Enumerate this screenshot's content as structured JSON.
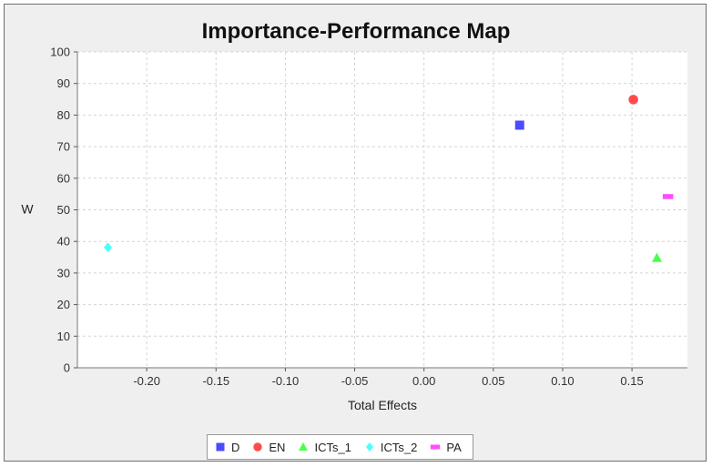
{
  "chart_data": {
    "type": "scatter",
    "title": "Importance-Performance Map",
    "xlabel": "Total Effects",
    "ylabel": "W",
    "xlim": [
      -0.25,
      0.19
    ],
    "ylim": [
      0,
      100
    ],
    "x_ticks": [
      -0.2,
      -0.15,
      -0.1,
      -0.05,
      0.0,
      0.05,
      0.1,
      0.15
    ],
    "x_tick_labels": [
      "-0.20",
      "-0.15",
      "-0.10",
      "-0.05",
      "0.00",
      "0.05",
      "0.10",
      "0.15"
    ],
    "y_ticks": [
      0,
      10,
      20,
      30,
      40,
      50,
      60,
      70,
      80,
      90,
      100
    ],
    "y_tick_labels": [
      "0",
      "10",
      "20",
      "30",
      "40",
      "50",
      "60",
      "70",
      "80",
      "90",
      "100"
    ],
    "grid": true,
    "legend_position": "bottom",
    "series": [
      {
        "name": "D",
        "marker": "square",
        "color": "#4b4bff",
        "x": 0.069,
        "y": 76.8
      },
      {
        "name": "EN",
        "marker": "circle",
        "color": "#ff4b4b",
        "x": 0.151,
        "y": 84.9
      },
      {
        "name": "ICTs_1",
        "marker": "triangle",
        "color": "#4bff4b",
        "x": 0.168,
        "y": 34.8
      },
      {
        "name": "ICTs_2",
        "marker": "diamond",
        "color": "#4bffff",
        "x": -0.228,
        "y": 38.1
      },
      {
        "name": "PA",
        "marker": "dash",
        "color": "#ff4bff",
        "x": 0.176,
        "y": 54.2
      }
    ]
  }
}
